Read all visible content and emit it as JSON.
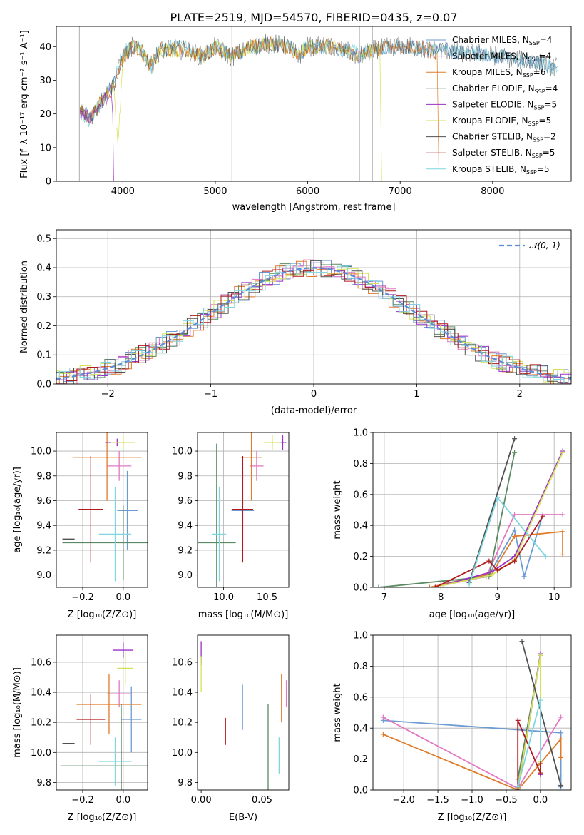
{
  "figure": {
    "title": "PLATE=2519, MJD=54570, FIBERID=0435, z=0.07"
  },
  "colors": {
    "Chabrier MILES": "#6c9bd2",
    "Salpeter MILES": "#e377c2",
    "Kroupa MILES": "#e07b28",
    "Chabrier ELODIE": "#5a8a62",
    "Salpeter ELODIE": "#9b30c8",
    "Kroupa ELODIE": "#d4e157",
    "Chabrier STELIB": "#505050",
    "Salpeter STELIB": "#b0191e",
    "Kroupa STELIB": "#7fd6e0"
  },
  "chart_data": [
    {
      "id": "spectrum",
      "type": "line",
      "title": "PLATE=2519, MJD=54570, FIBERID=0435, z=0.07",
      "xlabel": "wavelength [Angstrom, rest frame]",
      "ylabel": "Flux [f_λ 10⁻¹⁷ erg cm⁻² s⁻¹ A⁻¹]",
      "xlim": [
        3280,
        8850
      ],
      "ylim": [
        0,
        46
      ],
      "xticks": [
        4000,
        5000,
        6000,
        7000,
        8000
      ],
      "yticks": [
        0,
        10,
        20,
        30,
        40
      ],
      "grid": false,
      "legend_position": "top-right",
      "legend": [
        "Chabrier MILES, N_SSP=4",
        "Salpeter MILES, N_SSP=4",
        "Kroupa MILES, N_SSP=6",
        "Chabrier ELODIE, N_SSP=4",
        "Salpeter ELODIE, N_SSP=5",
        "Kroupa ELODIE, N_SSP=5",
        "Chabrier STELIB, N_SSP=2",
        "Salpeter STELIB, N_SSP=5",
        "Kroupa STELIB, N_SSP=5"
      ],
      "series": [
        {
          "name": "Chabrier MILES, N_SSP=4",
          "x": [
            3530,
            3650,
            3800,
            3900,
            4000,
            4100,
            4200,
            4300,
            4400,
            4500,
            4700,
            4860,
            5000,
            5175,
            5400,
            5600,
            5800,
            5895,
            6000,
            6200,
            6400,
            6563,
            6700,
            6900,
            7100,
            7300,
            7500,
            7700,
            7900,
            8100,
            8300,
            8500,
            8700
          ],
          "y": [
            21,
            19,
            25,
            29,
            37,
            40,
            39,
            34,
            39,
            39,
            39,
            37,
            40,
            37,
            40,
            41,
            40,
            37,
            40,
            40,
            39,
            37,
            39,
            40,
            40,
            39,
            39,
            38,
            38,
            37,
            36,
            35,
            34
          ]
        },
        {
          "name": "Kroupa STELIB, N_SSP=5",
          "x": [
            3530,
            3650,
            3800,
            3900,
            4000,
            4100,
            4200,
            4300,
            4400,
            4500,
            4700,
            4860,
            5000,
            5175,
            5400,
            5600,
            5800,
            5895,
            6000,
            6200,
            6400,
            6563,
            6700,
            6900,
            7100,
            7300,
            7500,
            7700,
            7900,
            8100,
            8300,
            8500,
            8700
          ],
          "y": [
            20,
            18,
            25,
            29,
            38,
            41,
            39,
            33,
            39,
            40,
            40,
            37,
            40,
            38,
            40,
            41,
            40,
            38,
            40,
            40,
            39,
            38,
            39,
            40,
            40,
            39,
            39,
            38,
            38,
            37,
            36,
            35,
            33
          ]
        },
        {
          "name": "Kroupa ELODIE, N_SSP=5",
          "x": [
            3530,
            3650,
            3800,
            3900,
            3945,
            4000,
            4100,
            4200,
            4300,
            4400,
            4500,
            4700,
            4860,
            5000,
            5175,
            5400,
            5600,
            5800,
            5895,
            6000,
            6200,
            6400,
            6563,
            6700,
            6780,
            6800
          ],
          "y": [
            21,
            19,
            25,
            29,
            10,
            37,
            40,
            39,
            34,
            39,
            39,
            39,
            37,
            40,
            37,
            40,
            41,
            40,
            37,
            40,
            40,
            39,
            37,
            39,
            40,
            0
          ]
        },
        {
          "name": "Kroupa MILES, N_SSP=6",
          "x": [
            3530,
            3650,
            3800,
            3900,
            4000,
            4100,
            4200,
            4300,
            4400,
            4500,
            4700,
            4860,
            5000,
            5175,
            5400,
            5600,
            5800,
            5895,
            6000,
            6200,
            6400,
            6563,
            6700,
            6900,
            7100,
            7300,
            7400,
            7420
          ],
          "y": [
            21,
            19,
            25,
            28,
            37,
            40,
            39,
            34,
            39,
            39,
            39,
            37,
            40,
            37,
            40,
            41,
            40,
            37,
            40,
            40,
            39,
            37,
            39,
            40,
            40,
            39,
            38,
            0
          ]
        },
        {
          "name": "Salpeter ELODIE, N_SSP=5",
          "x": [
            3530,
            3650,
            3800,
            3870,
            3890,
            3900
          ],
          "y": [
            20,
            19,
            24,
            27,
            20,
            0
          ]
        }
      ]
    },
    {
      "id": "residuals",
      "type": "line",
      "xlabel": "(data-model)/error",
      "ylabel": "Normed distribution",
      "xlim": [
        -2.5,
        2.5
      ],
      "ylim": [
        0,
        0.53
      ],
      "xticks": [
        -2,
        -1,
        0,
        1,
        2
      ],
      "yticks": [
        0.0,
        0.1,
        0.2,
        0.3,
        0.4,
        0.5
      ],
      "grid": true,
      "legend_position": "top-right",
      "legend": [
        "𝒩(0,1)"
      ],
      "reference_curve": "normal(0,1) pdf"
    },
    {
      "id": "age-vs-Z",
      "type": "scatter",
      "xlabel": "Z [log10(Z/Z⊙)]",
      "ylabel": "age [log10(age/yr)]",
      "xlim": [
        -0.33,
        0.12
      ],
      "ylim": [
        8.9,
        10.15
      ],
      "xticks": [
        -0.2,
        0.0
      ],
      "yticks": [
        9.0,
        9.2,
        9.4,
        9.6,
        9.8,
        10.0
      ],
      "grid": true,
      "points": [
        {
          "model": "Chabrier MILES",
          "x": 0.02,
          "y": 9.52,
          "xerr": 0.05,
          "yerr": 0.32
        },
        {
          "model": "Salpeter MILES",
          "x": -0.02,
          "y": 9.88,
          "xerr": 0.06,
          "yerr": 0.12
        },
        {
          "model": "Kroupa MILES",
          "x": -0.08,
          "y": 9.95,
          "xerr": 0.17,
          "yerr": 0.35
        },
        {
          "model": "Chabrier ELODIE",
          "x": 0.0,
          "y": 9.26,
          "xerr": 0.3,
          "yerr": 0.3
        },
        {
          "model": "Salpeter ELODIE",
          "x": -0.03,
          "y": 10.07,
          "xerr": 0.06,
          "yerr": 0.03
        },
        {
          "model": "Kroupa ELODIE",
          "x": 0.0,
          "y": 10.07,
          "xerr": 0.06,
          "yerr": 0.06
        },
        {
          "model": "Chabrier STELIB",
          "x": -0.27,
          "y": 9.29,
          "xerr": 0.03,
          "yerr": 0.0
        },
        {
          "model": "Salpeter STELIB",
          "x": -0.16,
          "y": 9.53,
          "xerr": 0.06,
          "yerr": 0.43
        },
        {
          "model": "Kroupa STELIB",
          "x": -0.04,
          "y": 9.33,
          "xerr": 0.08,
          "yerr": 0.38
        }
      ]
    },
    {
      "id": "age-vs-mass",
      "type": "scatter",
      "xlabel": "mass [log10(M/M⊙)]",
      "ylabel": "",
      "xlim": [
        9.7,
        10.75
      ],
      "ylim": [
        8.9,
        10.15
      ],
      "xticks": [
        10.0,
        10.5
      ],
      "yticks": [
        9.0,
        9.2,
        9.4,
        9.6,
        9.8,
        10.0
      ],
      "grid": true,
      "points": [
        {
          "model": "Chabrier MILES",
          "x": 10.22,
          "y": 9.52,
          "xerr": 0.13,
          "yerr": 0.32
        },
        {
          "model": "Salpeter MILES",
          "x": 10.38,
          "y": 9.88,
          "xerr": 0.08,
          "yerr": 0.12
        },
        {
          "model": "Kroupa MILES",
          "x": 10.32,
          "y": 9.95,
          "xerr": 0.12,
          "yerr": 0.35
        },
        {
          "model": "Chabrier ELODIE",
          "x": 9.92,
          "y": 9.26,
          "xerr": 0.22,
          "yerr": 0.8
        },
        {
          "model": "Salpeter ELODIE",
          "x": 10.68,
          "y": 10.07,
          "xerr": 0.04,
          "yerr": 0.06
        },
        {
          "model": "Kroupa ELODIE",
          "x": 10.56,
          "y": 10.07,
          "xerr": 0.1,
          "yerr": 0.06
        },
        {
          "model": "Salpeter STELIB",
          "x": 10.22,
          "y": 9.53,
          "xerr": 0.12,
          "yerr": 0.43
        },
        {
          "model": "Kroupa STELIB",
          "x": 9.95,
          "y": 9.33,
          "xerr": 0.08,
          "yerr": 0.38
        }
      ]
    },
    {
      "id": "mass-weight-vs-age",
      "type": "line",
      "xlabel": "age [log10(age/yr)]",
      "ylabel": "mass weight",
      "xlim": [
        6.8,
        10.3
      ],
      "ylim": [
        0.0,
        1.0
      ],
      "xticks": [
        7,
        8,
        9,
        10
      ],
      "yticks": [
        0.0,
        0.2,
        0.4,
        0.6,
        0.8,
        1.0
      ],
      "grid": true,
      "series": [
        {
          "name": "Chabrier MILES",
          "x": [
            8.0,
            8.85,
            9.3,
            9.47,
            9.8
          ],
          "y": [
            0.02,
            0.08,
            0.37,
            0.07,
            0.47
          ]
        },
        {
          "name": "Salpeter MILES",
          "x": [
            8.0,
            8.8,
            9.3,
            10.15
          ],
          "y": [
            0.01,
            0.07,
            0.47,
            0.47
          ]
        },
        {
          "name": "Kroupa MILES",
          "x": [
            7.8,
            8.9,
            9.3,
            10.15,
            10.15
          ],
          "y": [
            0.0,
            0.09,
            0.33,
            0.36,
            0.21
          ]
        },
        {
          "name": "Chabrier ELODIE",
          "x": [
            6.9,
            8.85,
            9.3
          ],
          "y": [
            0.0,
            0.07,
            0.87
          ]
        },
        {
          "name": "Salpeter ELODIE",
          "x": [
            8.0,
            8.9,
            9.3,
            10.15
          ],
          "y": [
            0.01,
            0.1,
            0.2,
            0.88
          ]
        },
        {
          "name": "Kroupa ELODIE",
          "x": [
            8.0,
            8.9,
            9.3,
            10.15
          ],
          "y": [
            0.01,
            0.08,
            0.18,
            0.87
          ]
        },
        {
          "name": "Chabrier STELIB",
          "x": [
            8.5,
            9.3
          ],
          "y": [
            0.03,
            0.96
          ]
        },
        {
          "name": "Salpeter STELIB",
          "x": [
            7.9,
            8.85,
            9.0,
            9.3,
            9.8
          ],
          "y": [
            0.0,
            0.17,
            0.11,
            0.17,
            0.46
          ]
        },
        {
          "name": "Kroupa STELIB",
          "x": [
            8.5,
            9.0,
            9.85
          ],
          "y": [
            0.02,
            0.58,
            0.2
          ]
        }
      ]
    },
    {
      "id": "mass-vs-Z",
      "type": "scatter",
      "xlabel": "Z [log10(Z/Z⊙)]",
      "ylabel": "mass [log10(M/M⊙)]",
      "xlim": [
        -0.33,
        0.12
      ],
      "ylim": [
        9.75,
        10.78
      ],
      "xticks": [
        -0.2,
        0.0
      ],
      "yticks": [
        9.8,
        10.0,
        10.2,
        10.4,
        10.6
      ],
      "grid": true,
      "points": [
        {
          "model": "Chabrier MILES",
          "x": 0.04,
          "y": 10.22,
          "xerr": 0.05,
          "yerr": 0.22
        },
        {
          "model": "Salpeter MILES",
          "x": -0.02,
          "y": 10.39,
          "xerr": 0.06,
          "yerr": 0.09
        },
        {
          "model": "Kroupa MILES",
          "x": -0.07,
          "y": 10.32,
          "xerr": 0.16,
          "yerr": 0.2
        },
        {
          "model": "Chabrier ELODIE",
          "x": -0.01,
          "y": 9.91,
          "xerr": 0.3,
          "yerr": 0.41
        },
        {
          "model": "Salpeter ELODIE",
          "x": 0.0,
          "y": 10.68,
          "xerr": 0.05,
          "yerr": 0.05
        },
        {
          "model": "Kroupa ELODIE",
          "x": 0.01,
          "y": 10.56,
          "xerr": 0.04,
          "yerr": 0.11
        },
        {
          "model": "Chabrier STELIB",
          "x": -0.27,
          "y": 10.06,
          "xerr": 0.03,
          "yerr": 0.0
        },
        {
          "model": "Salpeter STELIB",
          "x": -0.16,
          "y": 10.22,
          "xerr": 0.07,
          "yerr": 0.17
        },
        {
          "model": "Kroupa STELIB",
          "x": -0.04,
          "y": 9.94,
          "xerr": 0.08,
          "yerr": 0.16
        }
      ]
    },
    {
      "id": "mass-vs-EBV",
      "type": "scatter",
      "xlabel": "E(B-V)",
      "ylabel": "",
      "xlim": [
        -0.003,
        0.072
      ],
      "ylim": [
        9.75,
        10.78
      ],
      "xticks": [
        0.0,
        0.05
      ],
      "yticks": [
        9.8,
        10.0,
        10.2,
        10.4,
        10.6
      ],
      "grid": false,
      "points": [
        {
          "model": "Chabrier MILES",
          "x": 0.034,
          "y": 10.3,
          "yerr": 0.15
        },
        {
          "model": "Salpeter MILES",
          "x": 0.07,
          "y": 10.39,
          "yerr": 0.09
        },
        {
          "model": "Kroupa MILES",
          "x": 0.066,
          "y": 10.36,
          "yerr": 0.16
        },
        {
          "model": "Chabrier ELODIE",
          "x": 0.055,
          "y": 9.91,
          "yerr": 0.41
        },
        {
          "model": "Salpeter ELODIE",
          "x": 0.0,
          "y": 10.66,
          "yerr": 0.08
        },
        {
          "model": "Kroupa ELODIE",
          "x": 0.0,
          "y": 10.52,
          "yerr": 0.12
        },
        {
          "model": "Salpeter STELIB",
          "x": 0.02,
          "y": 10.14,
          "yerr": 0.09
        },
        {
          "model": "Kroupa STELIB",
          "x": 0.064,
          "y": 9.98,
          "yerr": 0.12
        }
      ]
    },
    {
      "id": "mass-weight-vs-Z",
      "type": "line",
      "xlabel": "Z [log10(Z/Z⊙)]",
      "ylabel": "mass weight",
      "xlim": [
        -2.45,
        0.45
      ],
      "ylim": [
        0.0,
        1.0
      ],
      "xticks": [
        -2.0,
        -1.5,
        -1.0,
        -0.5,
        0.0
      ],
      "yticks": [
        0.0,
        0.2,
        0.4,
        0.6,
        0.8,
        1.0
      ],
      "grid": true,
      "series": [
        {
          "name": "Chabrier MILES",
          "x": [
            -2.3,
            0.3,
            0.3,
            0.3
          ],
          "y": [
            0.45,
            0.37,
            0.09,
            0.02
          ]
        },
        {
          "name": "Salpeter MILES",
          "x": [
            -2.3,
            -0.33,
            0.3
          ],
          "y": [
            0.47,
            0.01,
            0.47
          ]
        },
        {
          "name": "Kroupa MILES",
          "x": [
            -2.3,
            -0.33,
            0.3,
            0.3
          ],
          "y": [
            0.36,
            0.0,
            0.33,
            0.21
          ]
        },
        {
          "name": "Chabrier ELODIE",
          "x": [
            -0.33,
            0.0,
            -0.33
          ],
          "y": [
            0.0,
            0.87,
            0.07
          ]
        },
        {
          "name": "Salpeter ELODIE",
          "x": [
            -0.33,
            0.0,
            0.0
          ],
          "y": [
            0.01,
            0.88,
            0.1
          ]
        },
        {
          "name": "Kroupa ELODIE",
          "x": [
            -0.33,
            0.0,
            0.0
          ],
          "y": [
            0.01,
            0.87,
            0.18
          ]
        },
        {
          "name": "Chabrier STELIB",
          "x": [
            -0.27,
            0.3
          ],
          "y": [
            0.96,
            0.03
          ]
        },
        {
          "name": "Salpeter STELIB",
          "x": [
            -0.33,
            -0.33,
            0.0,
            0.0
          ],
          "y": [
            0.0,
            0.45,
            0.11,
            0.17
          ]
        },
        {
          "name": "Kroupa STELIB",
          "x": [
            -0.33,
            0.0,
            0.0
          ],
          "y": [
            0.02,
            0.58,
            0.2
          ]
        }
      ]
    }
  ]
}
